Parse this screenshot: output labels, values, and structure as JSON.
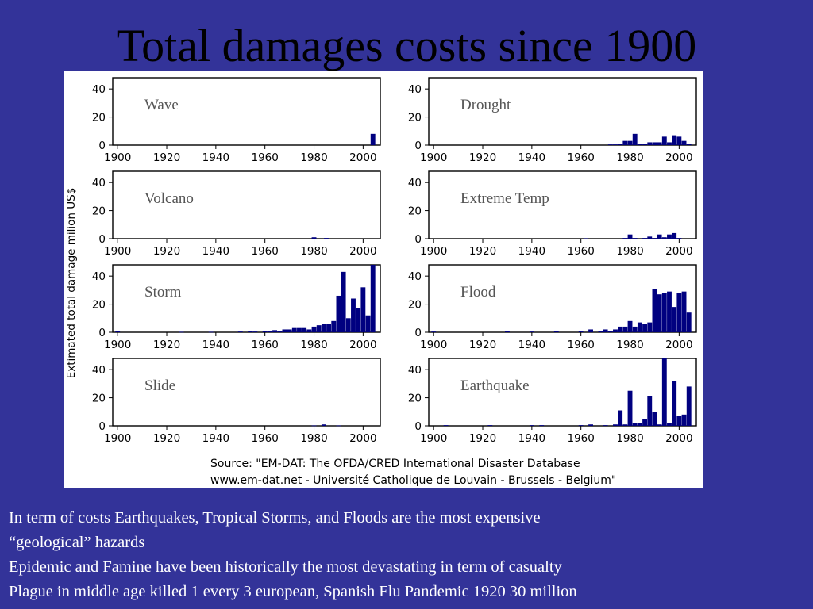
{
  "slide": {
    "title": "Total damages costs since 1900",
    "notes": [
      "In term of costs Earthquakes, Tropical Storms, and Floods are the most expensive",
      "“geological” hazards",
      "Epidemic and Famine have been historically  the most devastating in term of casualty",
      "Plague in middle age killed 1 every 3 european, Spanish Flu Pandemic 1920 30 million"
    ]
  },
  "figure": {
    "ylabel": "Extimated total damage milion US$",
    "source_lines": [
      "Source: \"EM-DAT: The OFDA/CRED International Disaster Database",
      "www.em-dat.net - Université Catholique de Louvain - Brussels - Belgium\""
    ]
  },
  "colors": {
    "bar": "#000080",
    "background": "#333399",
    "panel_label": "#555555"
  },
  "chart_data": [
    {
      "type": "bar",
      "title": "Wave",
      "x_ticks": [
        1900,
        1920,
        1940,
        1960,
        1980,
        2000
      ],
      "y_ticks": [
        0,
        20,
        40
      ],
      "ylim": [
        0,
        48
      ],
      "bars": [
        {
          "x": 2004,
          "y": 8
        }
      ]
    },
    {
      "type": "bar",
      "title": "Drought",
      "x_ticks": [
        1900,
        1920,
        1940,
        1960,
        1980,
        2000
      ],
      "y_ticks": [
        0,
        20,
        40
      ],
      "ylim": [
        0,
        48
      ],
      "bars": [
        {
          "x": 1972,
          "y": 0.5
        },
        {
          "x": 1974,
          "y": 0.5
        },
        {
          "x": 1976,
          "y": 1
        },
        {
          "x": 1978,
          "y": 3
        },
        {
          "x": 1980,
          "y": 3
        },
        {
          "x": 1982,
          "y": 8
        },
        {
          "x": 1984,
          "y": 1
        },
        {
          "x": 1986,
          "y": 1
        },
        {
          "x": 1988,
          "y": 2
        },
        {
          "x": 1990,
          "y": 2
        },
        {
          "x": 1992,
          "y": 2
        },
        {
          "x": 1994,
          "y": 6
        },
        {
          "x": 1996,
          "y": 2
        },
        {
          "x": 1998,
          "y": 7
        },
        {
          "x": 2000,
          "y": 6
        },
        {
          "x": 2002,
          "y": 3
        },
        {
          "x": 2004,
          "y": 1
        }
      ]
    },
    {
      "type": "bar",
      "title": "Volcano",
      "x_ticks": [
        1900,
        1920,
        1940,
        1960,
        1980,
        2000
      ],
      "y_ticks": [
        0,
        20,
        40
      ],
      "ylim": [
        0,
        48
      ],
      "bars": [
        {
          "x": 1980,
          "y": 1
        },
        {
          "x": 1985,
          "y": 0.5
        }
      ]
    },
    {
      "type": "bar",
      "title": "Extreme Temp",
      "x_ticks": [
        1900,
        1920,
        1940,
        1960,
        1980,
        2000
      ],
      "y_ticks": [
        0,
        20,
        40
      ],
      "ylim": [
        0,
        48
      ],
      "bars": [
        {
          "x": 1962,
          "y": 0.3
        },
        {
          "x": 1978,
          "y": 0.5
        },
        {
          "x": 1980,
          "y": 3
        },
        {
          "x": 1982,
          "y": 0.5
        },
        {
          "x": 1986,
          "y": 0.5
        },
        {
          "x": 1988,
          "y": 1.5
        },
        {
          "x": 1990,
          "y": 0.5
        },
        {
          "x": 1992,
          "y": 3
        },
        {
          "x": 1994,
          "y": 1
        },
        {
          "x": 1996,
          "y": 3
        },
        {
          "x": 1998,
          "y": 4
        },
        {
          "x": 2000,
          "y": 0.5
        }
      ]
    },
    {
      "type": "bar",
      "title": "Storm",
      "x_ticks": [
        1900,
        1920,
        1940,
        1960,
        1980,
        2000
      ],
      "y_ticks": [
        0,
        20,
        40
      ],
      "ylim": [
        0,
        48
      ],
      "bars": [
        {
          "x": 1900,
          "y": 1
        },
        {
          "x": 1926,
          "y": 0.3
        },
        {
          "x": 1938,
          "y": 0.3
        },
        {
          "x": 1950,
          "y": 0.5
        },
        {
          "x": 1954,
          "y": 1
        },
        {
          "x": 1956,
          "y": 0.5
        },
        {
          "x": 1960,
          "y": 1
        },
        {
          "x": 1962,
          "y": 1
        },
        {
          "x": 1964,
          "y": 1.5
        },
        {
          "x": 1966,
          "y": 1
        },
        {
          "x": 1968,
          "y": 2
        },
        {
          "x": 1970,
          "y": 2
        },
        {
          "x": 1972,
          "y": 3
        },
        {
          "x": 1974,
          "y": 3
        },
        {
          "x": 1976,
          "y": 3
        },
        {
          "x": 1978,
          "y": 2
        },
        {
          "x": 1980,
          "y": 4
        },
        {
          "x": 1982,
          "y": 5
        },
        {
          "x": 1984,
          "y": 6
        },
        {
          "x": 1986,
          "y": 6
        },
        {
          "x": 1988,
          "y": 8
        },
        {
          "x": 1990,
          "y": 26
        },
        {
          "x": 1992,
          "y": 43
        },
        {
          "x": 1994,
          "y": 10
        },
        {
          "x": 1996,
          "y": 24
        },
        {
          "x": 1998,
          "y": 17
        },
        {
          "x": 2000,
          "y": 32
        },
        {
          "x": 2002,
          "y": 12
        },
        {
          "x": 2004,
          "y": 48
        }
      ]
    },
    {
      "type": "bar",
      "title": "Flood",
      "x_ticks": [
        1900,
        1920,
        1940,
        1960,
        1980,
        2000
      ],
      "y_ticks": [
        0,
        20,
        40
      ],
      "ylim": [
        0,
        48
      ],
      "bars": [
        {
          "x": 1900,
          "y": 0.5
        },
        {
          "x": 1930,
          "y": 1
        },
        {
          "x": 1940,
          "y": 0.5
        },
        {
          "x": 1950,
          "y": 1
        },
        {
          "x": 1960,
          "y": 1
        },
        {
          "x": 1964,
          "y": 2
        },
        {
          "x": 1968,
          "y": 1
        },
        {
          "x": 1970,
          "y": 2
        },
        {
          "x": 1972,
          "y": 1
        },
        {
          "x": 1974,
          "y": 2
        },
        {
          "x": 1976,
          "y": 4
        },
        {
          "x": 1978,
          "y": 4
        },
        {
          "x": 1980,
          "y": 8
        },
        {
          "x": 1982,
          "y": 4
        },
        {
          "x": 1984,
          "y": 7
        },
        {
          "x": 1986,
          "y": 6
        },
        {
          "x": 1988,
          "y": 7
        },
        {
          "x": 1990,
          "y": 31
        },
        {
          "x": 1992,
          "y": 27
        },
        {
          "x": 1994,
          "y": 28
        },
        {
          "x": 1996,
          "y": 29
        },
        {
          "x": 1998,
          "y": 18
        },
        {
          "x": 2000,
          "y": 28
        },
        {
          "x": 2002,
          "y": 29
        },
        {
          "x": 2004,
          "y": 14
        }
      ]
    },
    {
      "type": "bar",
      "title": "Slide",
      "x_ticks": [
        1900,
        1920,
        1940,
        1960,
        1980,
        2000
      ],
      "y_ticks": [
        0,
        20,
        40
      ],
      "ylim": [
        0,
        48
      ],
      "bars": [
        {
          "x": 1980,
          "y": 0.3
        },
        {
          "x": 1984,
          "y": 1
        },
        {
          "x": 1990,
          "y": 0.3
        }
      ]
    },
    {
      "type": "bar",
      "title": "Earthquake",
      "x_ticks": [
        1900,
        1920,
        1940,
        1960,
        1980,
        2000
      ],
      "y_ticks": [
        0,
        20,
        40
      ],
      "ylim": [
        0,
        48
      ],
      "bars": [
        {
          "x": 1905,
          "y": 0.5
        },
        {
          "x": 1923,
          "y": 0.5
        },
        {
          "x": 1940,
          "y": 0.5
        },
        {
          "x": 1944,
          "y": 0.5
        },
        {
          "x": 1960,
          "y": 0.5
        },
        {
          "x": 1964,
          "y": 1
        },
        {
          "x": 1970,
          "y": 0.5
        },
        {
          "x": 1974,
          "y": 1
        },
        {
          "x": 1976,
          "y": 11
        },
        {
          "x": 1978,
          "y": 1
        },
        {
          "x": 1980,
          "y": 25
        },
        {
          "x": 1982,
          "y": 2
        },
        {
          "x": 1984,
          "y": 2
        },
        {
          "x": 1986,
          "y": 5
        },
        {
          "x": 1988,
          "y": 21
        },
        {
          "x": 1990,
          "y": 10
        },
        {
          "x": 1992,
          "y": 1
        },
        {
          "x": 1994,
          "y": 48
        },
        {
          "x": 1996,
          "y": 2
        },
        {
          "x": 1998,
          "y": 32
        },
        {
          "x": 2000,
          "y": 7
        },
        {
          "x": 2002,
          "y": 8
        },
        {
          "x": 2004,
          "y": 28
        }
      ]
    }
  ]
}
